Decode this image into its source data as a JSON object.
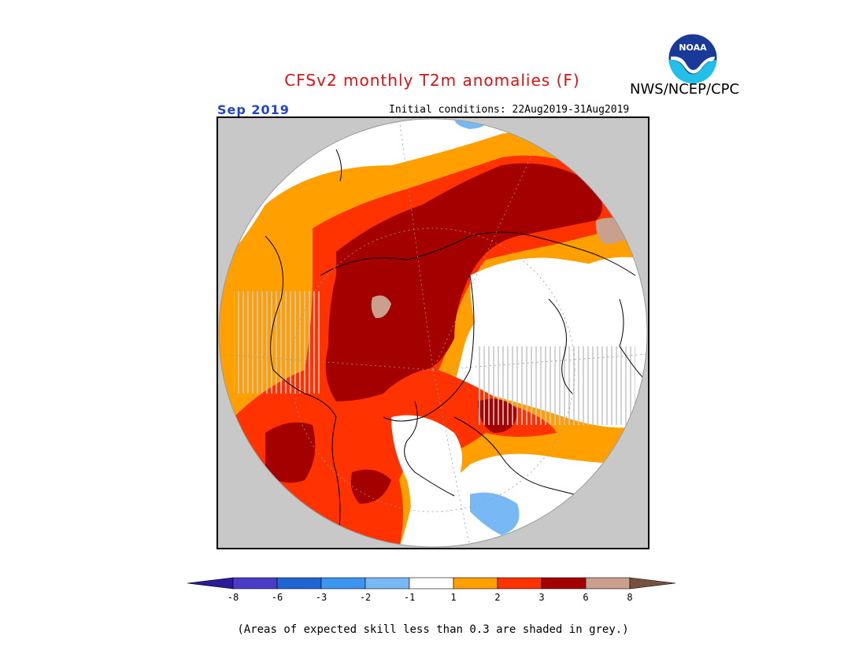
{
  "title": "CFSv2 monthly T2m anomalies (F)",
  "agency": "NWS/NCEP/CPC",
  "logo_text": "NOAA",
  "period": "Sep 2019",
  "initial_conditions": "Initial conditions: 22Aug2019-31Aug2019",
  "note": "(Areas of expected skill less than 0.3 are shaded in grey.)",
  "colorbar": {
    "tick_labels": [
      "-8",
      "-6",
      "-3",
      "-2",
      "-1",
      "1",
      "2",
      "3",
      "6",
      "8"
    ],
    "colors": [
      "#2a1a9c",
      "#4a3cc8",
      "#1e64d2",
      "#3c96f0",
      "#78b9f5",
      "#ffffff",
      "#ffa000",
      "#ff3200",
      "#a50000",
      "#c8a08c",
      "#785040"
    ],
    "units": "F"
  },
  "map": {
    "projection": "north-polar-stereographic",
    "background": "#c8c8c8",
    "anomaly_classes": {
      "near_normal": "#ffffff",
      "warm_1_2": "#ffa000",
      "warm_2_3": "#ff3200",
      "warm_3_6": "#a50000",
      "warm_6_8": "#c8a08c",
      "cool_minus1_minus2": "#78b9f5",
      "low_skill": "#b4b4b4"
    }
  }
}
